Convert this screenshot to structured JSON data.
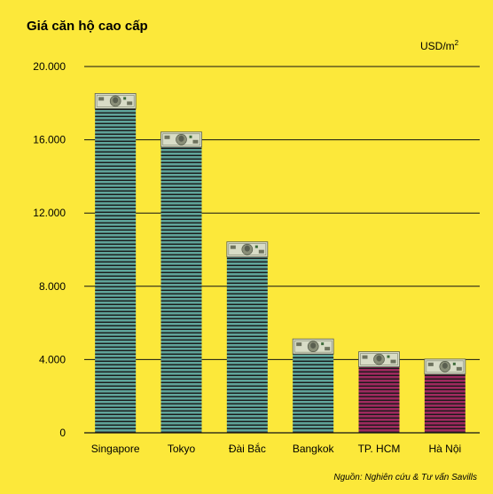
{
  "chart_data": {
    "type": "bar",
    "title": "Giá căn hộ cao cấp",
    "unit": "USD/m",
    "unit_superscript": "2",
    "categories": [
      "Singapore",
      "Tokyo",
      "Đài Bắc",
      "Bangkok",
      "TP. HCM",
      "Hà Nội"
    ],
    "values": [
      17800,
      15700,
      9700,
      4400,
      3700,
      3300
    ],
    "ylim": [
      0,
      20000
    ],
    "yticks": [
      0,
      4000,
      8000,
      12000,
      16000,
      20000
    ],
    "ytick_labels": [
      "0",
      "4.000",
      "8.000",
      "12.000",
      "16.000",
      "20.000"
    ],
    "grid": true,
    "source": "Nguồn: Nghiên cứu & Tư vấn Savills",
    "colors": {
      "background": "#FCE83A",
      "bar_teal": "#5FA49A",
      "bar_magenta": "#9E2A5E",
      "stripe": "#1a1a1a",
      "money": "#D8DCC6"
    },
    "bar_color_keys": [
      "bar_teal",
      "bar_teal",
      "bar_teal",
      "bar_teal",
      "bar_magenta",
      "bar_magenta"
    ]
  }
}
